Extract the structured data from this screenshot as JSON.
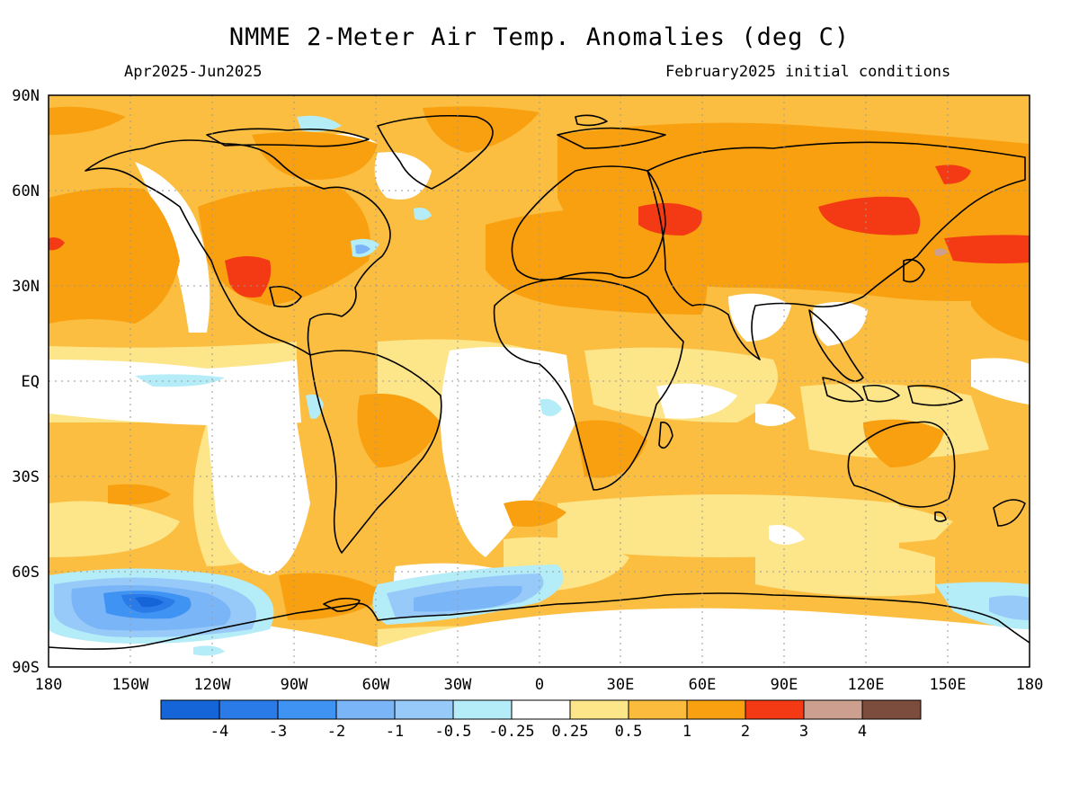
{
  "title": "NMME 2-Meter Air Temp. Anomalies (deg C)",
  "period": "Apr2025-Jun2025",
  "initial_conditions": "February2025 initial conditions",
  "lat_ticks": [
    "90N",
    "60N",
    "30N",
    "EQ",
    "30S",
    "60S",
    "90S"
  ],
  "lon_ticks": [
    "180",
    "150W",
    "120W",
    "90W",
    "60W",
    "30W",
    "0",
    "30E",
    "60E",
    "90E",
    "120E",
    "150E",
    "180"
  ],
  "colorbar": {
    "colors": [
      "#1565d8",
      "#2a7be8",
      "#3f93f2",
      "#7ab5f7",
      "#98caf9",
      "#b4ecf7",
      "#ffffff",
      "#fde58a",
      "#fbbb3c",
      "#f8a00f",
      "#f33a14",
      "#cd9f8f",
      "#7c4d3d"
    ],
    "labels": [
      "-4",
      "-3",
      "-2",
      "-1",
      "-0.5",
      "-0.25",
      "0.25",
      "0.5",
      "1",
      "2",
      "3",
      "4"
    ]
  },
  "colors": {
    "ocean_base": "#fbbe41",
    "near_zero": "#ffffff",
    "warm_1_2": "#f8a00f",
    "warm_2_3": "#f33a14",
    "cool_light": "#b4ecf7",
    "cool_mid": "#7ab5f7",
    "cool_strong": "#3f93f2",
    "cool_max": "#1565d8",
    "light_warm": "#fde58a",
    "coastline": "#000000"
  }
}
